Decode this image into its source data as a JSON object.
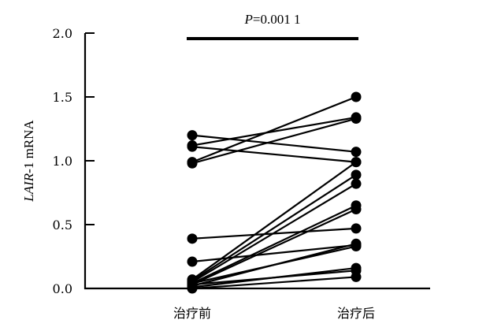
{
  "chart_data": {
    "type": "line",
    "title": "",
    "xlabel": "",
    "ylabel_italic": "LAIR",
    "ylabel_rest": "-1 mRNA",
    "categories": [
      "治疗前",
      "治疗后"
    ],
    "ylim": [
      0.0,
      2.0
    ],
    "yticks": [
      "0.0",
      "0.5",
      "1.0",
      "1.5",
      "2.0"
    ],
    "annotation": {
      "p_letter": "P",
      "p_value": "=0.001 1"
    },
    "pairs": [
      [
        1.2,
        1.07
      ],
      [
        1.11,
        0.99
      ],
      [
        1.12,
        1.34
      ],
      [
        0.98,
        1.33
      ],
      [
        0.99,
        1.5
      ],
      [
        0.39,
        0.47
      ],
      [
        0.21,
        0.34
      ],
      [
        0.07,
        0.99
      ],
      [
        0.06,
        0.89
      ],
      [
        0.05,
        0.82
      ],
      [
        0.04,
        0.65
      ],
      [
        0.03,
        0.62
      ],
      [
        0.02,
        0.35
      ],
      [
        0.04,
        0.33
      ],
      [
        0.01,
        0.16
      ],
      [
        0.03,
        0.14
      ],
      [
        0.0,
        0.09
      ]
    ]
  }
}
